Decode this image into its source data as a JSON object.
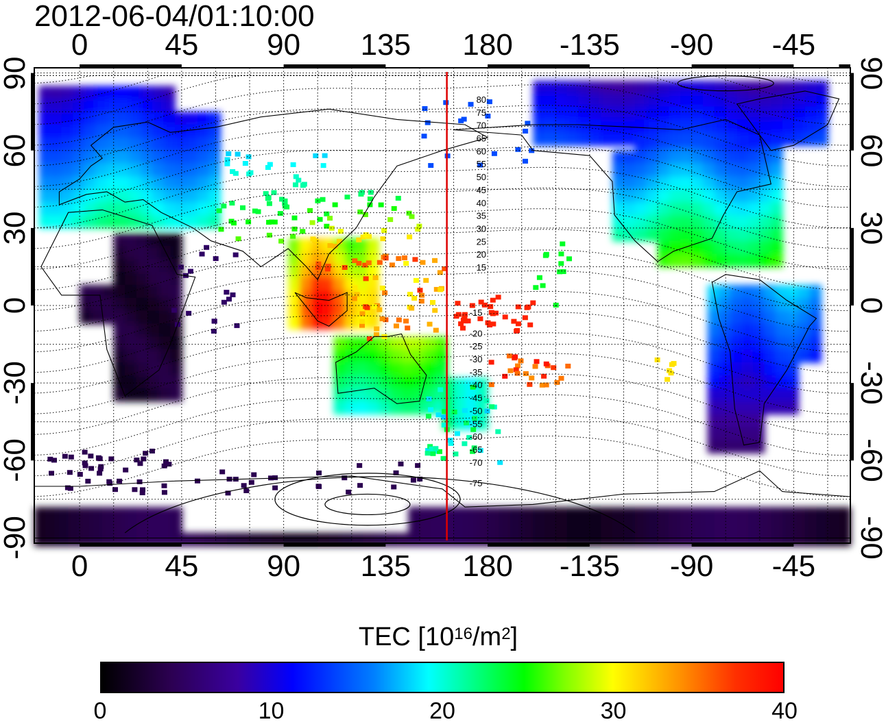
{
  "title": "2012-06-04/01:10:00",
  "map": {
    "lon_ticks_top": [
      "0",
      "45",
      "90",
      "135",
      "180",
      "-135",
      "-90",
      "-45"
    ],
    "lon_ticks_bottom": [
      "0",
      "45",
      "90",
      "135",
      "180",
      "-135",
      "-90",
      "-45"
    ],
    "lat_ticks_left": [
      "90",
      "60",
      "30",
      "0",
      "-30",
      "-60",
      "-90"
    ],
    "lat_ticks_right": [
      "90",
      "60",
      "30",
      "0",
      "-30",
      "-60",
      "-90"
    ],
    "lon_range": [
      -20,
      340
    ],
    "lat_range": [
      -92,
      92
    ],
    "grid": "dotted",
    "marker_meridian_lon": 162,
    "marker_color": "#dd0000",
    "contour_labels_north": [
      "80",
      "75",
      "70",
      "65",
      "60",
      "55",
      "50",
      "45",
      "40",
      "35",
      "30",
      "25",
      "20",
      "15"
    ],
    "contour_labels_south": [
      "-15",
      "-20",
      "-25",
      "-30",
      "-35",
      "-40",
      "-45",
      "-50",
      "-55",
      "-60",
      "-65",
      "-70",
      "-75"
    ]
  },
  "colorbar": {
    "label_main": "TEC  [10",
    "label_exp": "16",
    "label_unit": "/m",
    "label_unit_exp": "2",
    "label_end": "]",
    "ticks": [
      "0",
      "10",
      "20",
      "30",
      "40"
    ],
    "range": [
      0,
      40
    ],
    "colormap": "jet-like (black-purple-blue-cyan-green-yellow-red)"
  }
}
